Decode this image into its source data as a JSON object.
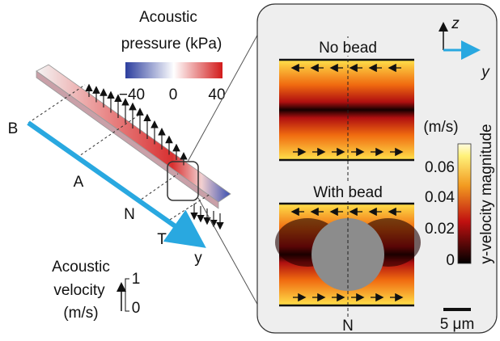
{
  "pressure_legend": {
    "title_line1": "Acoustic",
    "title_line2": "pressure (kPa)",
    "ticks": [
      "−40",
      "0",
      "40"
    ]
  },
  "channel_labels": {
    "b": "B",
    "a": "A",
    "n": "N",
    "t": "T",
    "y": "y"
  },
  "velocity_legend": {
    "line1": "Acoustic",
    "line2": "velocity",
    "line3": "(m/s)",
    "max": "1",
    "min": "0"
  },
  "panel": {
    "axis_z": "z",
    "axis_y": "y",
    "no_bead": "No bead",
    "with_bead": "With bead",
    "n_label": "N",
    "scale_bar": "5 μm",
    "colorbar": {
      "unit": "(m/s)",
      "ticks": [
        "0.06",
        "0.04",
        "0.02",
        "0"
      ],
      "title": "y-velocity magnitude"
    }
  }
}
